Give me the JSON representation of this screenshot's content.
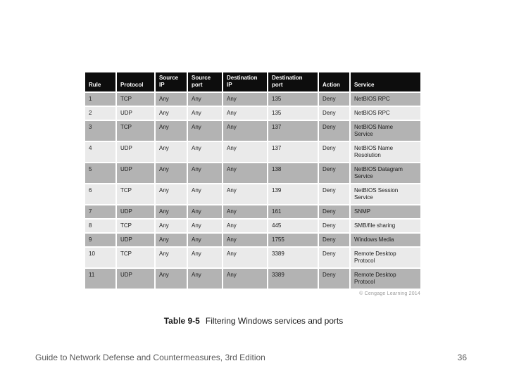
{
  "slide": {
    "caption_label": "Table 9-5",
    "caption_text": "Filtering Windows services and ports",
    "footer_text": "Guide to Network Defense and Countermeasures, 3rd Edition",
    "page_number": "36",
    "credit": "© Cengage Learning 2014"
  },
  "colors": {
    "header_bg": "#0d0d0d",
    "header_fg": "#ffffff",
    "row_dark": "#b3b3b3",
    "row_light": "#eaeaea",
    "cell_fg": "#1c1c1c",
    "grid_line": "#ffffff",
    "footer_fg": "#5a5a5a",
    "credit_fg": "#9b9b9b"
  },
  "table": {
    "columns": [
      "Rule",
      "Protocol",
      "Source IP",
      "Source port",
      "Destination IP",
      "Destination port",
      "Action",
      "Service"
    ],
    "rows": [
      [
        "1",
        "TCP",
        "Any",
        "Any",
        "Any",
        "135",
        "Deny",
        "NetBIOS RPC"
      ],
      [
        "2",
        "UDP",
        "Any",
        "Any",
        "Any",
        "135",
        "Deny",
        "NetBIOS RPC"
      ],
      [
        "3",
        "TCP",
        "Any",
        "Any",
        "Any",
        "137",
        "Deny",
        "NetBIOS Name Service"
      ],
      [
        "4",
        "UDP",
        "Any",
        "Any",
        "Any",
        "137",
        "Deny",
        "NetBIOS Name Resolution"
      ],
      [
        "5",
        "UDP",
        "Any",
        "Any",
        "Any",
        "138",
        "Deny",
        "NetBIOS Datagram Service"
      ],
      [
        "6",
        "TCP",
        "Any",
        "Any",
        "Any",
        "139",
        "Deny",
        "NetBIOS Session Service"
      ],
      [
        "7",
        "UDP",
        "Any",
        "Any",
        "Any",
        "161",
        "Deny",
        "SNMP"
      ],
      [
        "8",
        "TCP",
        "Any",
        "Any",
        "Any",
        "445",
        "Deny",
        "SMB/file sharing"
      ],
      [
        "9",
        "UDP",
        "Any",
        "Any",
        "Any",
        "1755",
        "Deny",
        "Windows Media"
      ],
      [
        "10",
        "TCP",
        "Any",
        "Any",
        "Any",
        "3389",
        "Deny",
        "Remote Desktop Protocol"
      ],
      [
        "11",
        "UDP",
        "Any",
        "Any",
        "Any",
        "3389",
        "Deny",
        "Remote Desktop Protocol"
      ]
    ]
  },
  "chart_data": {
    "type": "table",
    "title": "Table 9-5 Filtering Windows services and ports",
    "columns": [
      "Rule",
      "Protocol",
      "Source IP",
      "Source port",
      "Destination IP",
      "Destination port",
      "Action",
      "Service"
    ],
    "rows": [
      [
        "1",
        "TCP",
        "Any",
        "Any",
        "Any",
        "135",
        "Deny",
        "NetBIOS RPC"
      ],
      [
        "2",
        "UDP",
        "Any",
        "Any",
        "Any",
        "135",
        "Deny",
        "NetBIOS RPC"
      ],
      [
        "3",
        "TCP",
        "Any",
        "Any",
        "Any",
        "137",
        "Deny",
        "NetBIOS Name Service"
      ],
      [
        "4",
        "UDP",
        "Any",
        "Any",
        "Any",
        "137",
        "Deny",
        "NetBIOS Name Resolution"
      ],
      [
        "5",
        "UDP",
        "Any",
        "Any",
        "Any",
        "138",
        "Deny",
        "NetBIOS Datagram Service"
      ],
      [
        "6",
        "TCP",
        "Any",
        "Any",
        "Any",
        "139",
        "Deny",
        "NetBIOS Session Service"
      ],
      [
        "7",
        "UDP",
        "Any",
        "Any",
        "Any",
        "161",
        "Deny",
        "SNMP"
      ],
      [
        "8",
        "TCP",
        "Any",
        "Any",
        "Any",
        "445",
        "Deny",
        "SMB/file sharing"
      ],
      [
        "9",
        "UDP",
        "Any",
        "Any",
        "Any",
        "1755",
        "Deny",
        "Windows Media"
      ],
      [
        "10",
        "TCP",
        "Any",
        "Any",
        "Any",
        "3389",
        "Deny",
        "Remote Desktop Protocol"
      ],
      [
        "11",
        "UDP",
        "Any",
        "Any",
        "Any",
        "3389",
        "Deny",
        "Remote Desktop Protocol"
      ]
    ]
  }
}
